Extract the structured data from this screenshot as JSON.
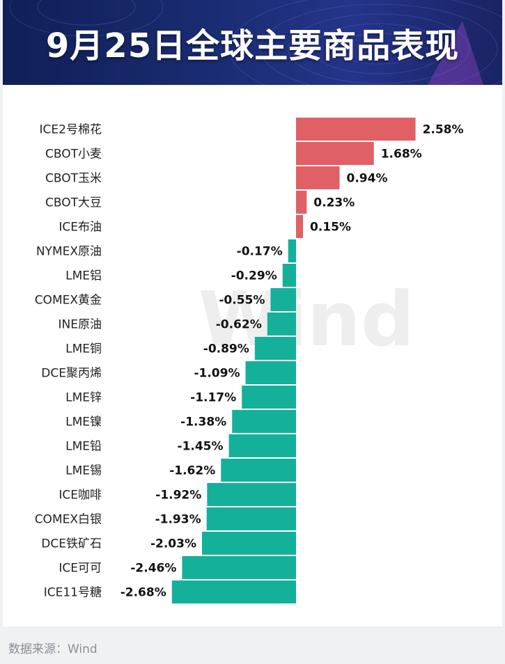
{
  "header": {
    "title": "9月25日全球主要商品表现"
  },
  "watermark": "Wind",
  "source": "数据来源：Wind",
  "colors": {
    "positive": "#e06065",
    "negative": "#14b09a"
  },
  "chart_data": {
    "type": "bar",
    "orientation": "horizontal",
    "title": "9月25日全球主要商品表现",
    "unit": "%",
    "categories": [
      "ICE2号棉花",
      "CBOT小麦",
      "CBOT玉米",
      "CBOT大豆",
      "ICE布油",
      "NYMEX原油",
      "LME铝",
      "COMEX黄金",
      "INE原油",
      "LME铜",
      "DCE聚丙烯",
      "LME锌",
      "LME镍",
      "LME铅",
      "LME锡",
      "ICE咖啡",
      "COMEX白银",
      "DCE铁矿石",
      "ICE可可",
      "ICE11号糖"
    ],
    "values": [
      2.58,
      1.68,
      0.94,
      0.23,
      0.15,
      -0.17,
      -0.29,
      -0.55,
      -0.62,
      -0.89,
      -1.09,
      -1.17,
      -1.38,
      -1.45,
      -1.62,
      -1.92,
      -1.93,
      -2.03,
      -2.46,
      -2.68
    ],
    "labels": [
      "2.58%",
      "1.68%",
      "0.94%",
      "0.23%",
      "0.15%",
      "-0.17%",
      "-0.29%",
      "-0.55%",
      "-0.62%",
      "-0.89%",
      "-1.09%",
      "-1.17%",
      "-1.38%",
      "-1.45%",
      "-1.62%",
      "-1.92%",
      "-1.93%",
      "-2.03%",
      "-2.46%",
      "-2.68%"
    ]
  }
}
